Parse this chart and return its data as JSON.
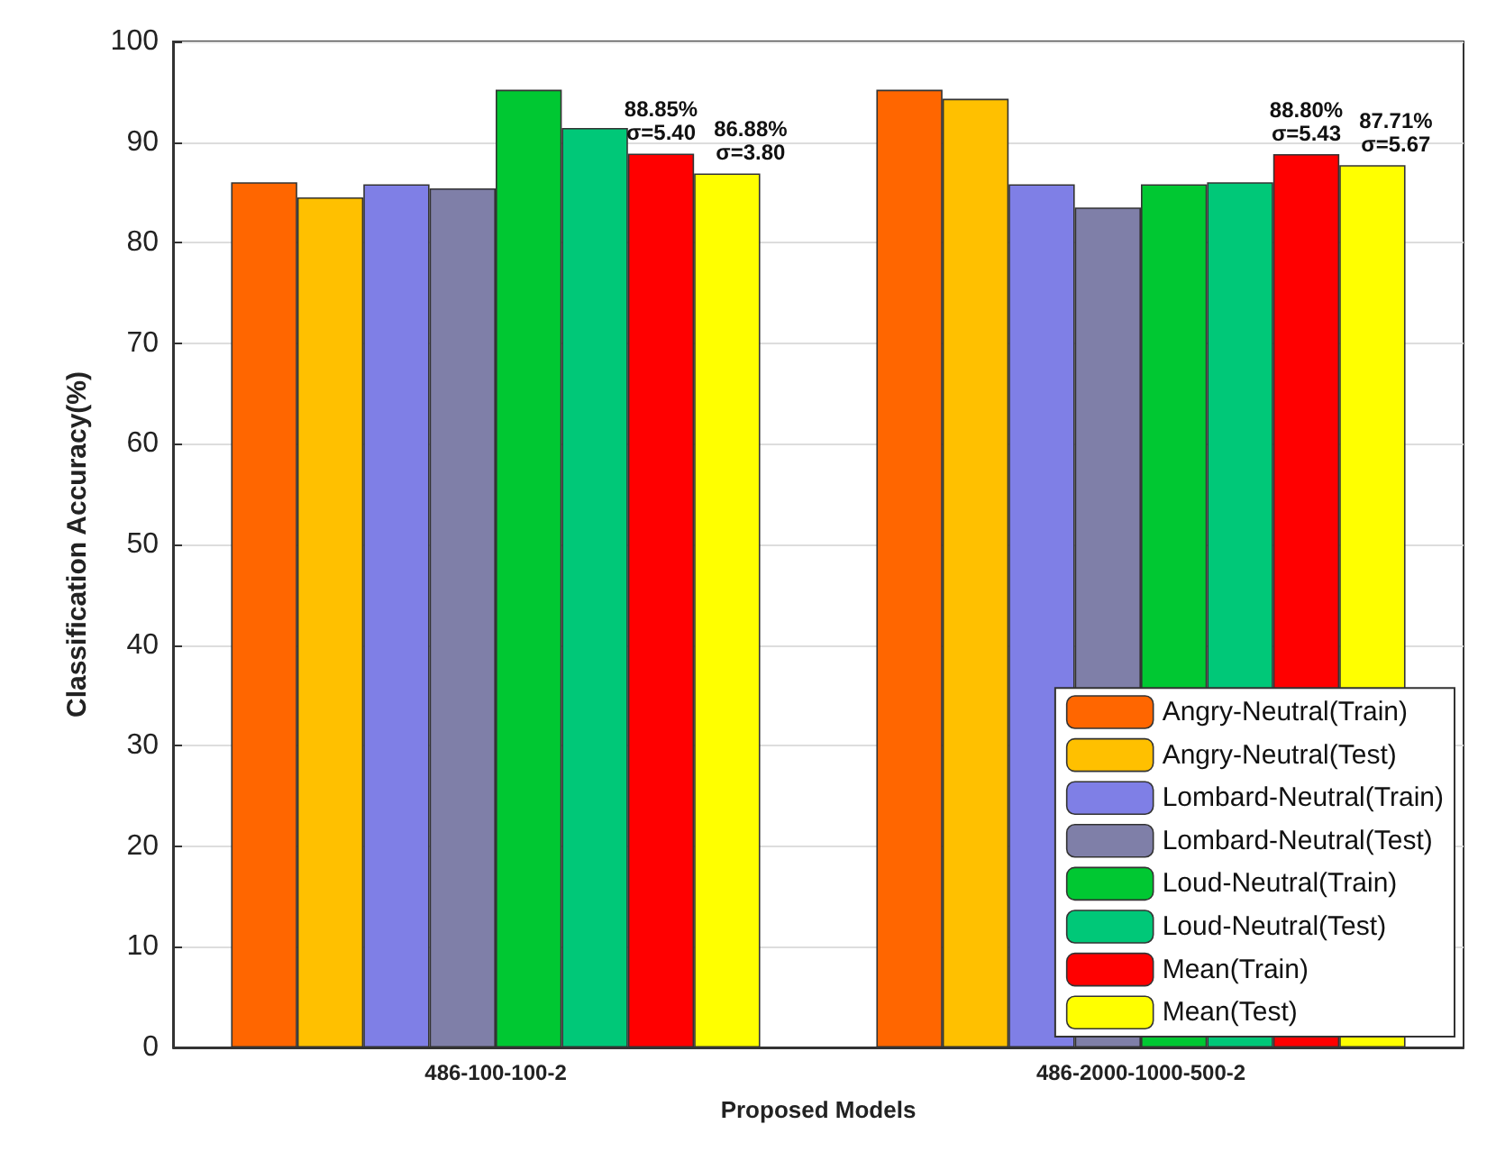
{
  "chart_data": {
    "type": "bar",
    "xlabel": "Proposed Models",
    "ylabel": "Classification Accuracy(%)",
    "categories": [
      "486-100-100-2",
      "486-2000-1000-500-2"
    ],
    "series": [
      {
        "name": "Angry-Neutral(Train)",
        "color": "#ff6600",
        "values": [
          86.0,
          95.2
        ]
      },
      {
        "name": "Angry-Neutral(Test)",
        "color": "#ffc000",
        "values": [
          84.5,
          94.3
        ]
      },
      {
        "name": "Lombard-Neutral(Train)",
        "color": "#7f7fe6",
        "values": [
          85.8,
          85.8
        ]
      },
      {
        "name": "Lombard-Neutral(Test)",
        "color": "#7f7fa8",
        "values": [
          85.4,
          83.5
        ]
      },
      {
        "name": "Loud-Neutral(Train)",
        "color": "#00c832",
        "values": [
          95.2,
          85.8
        ]
      },
      {
        "name": "Loud-Neutral(Test)",
        "color": "#00c878",
        "values": [
          91.4,
          86.0
        ]
      },
      {
        "name": "Mean(Train)",
        "color": "#ff0000",
        "values": [
          88.85,
          88.8
        ],
        "value_labels": [
          "88.85%\nσ=5.40",
          "88.80%\nσ=5.43"
        ]
      },
      {
        "name": "Mean(Test)",
        "color": "#ffff00",
        "values": [
          86.88,
          87.71
        ],
        "value_labels": [
          "86.88%\nσ=3.80",
          "87.71%\nσ=5.67"
        ]
      }
    ],
    "ylim": [
      0,
      100
    ],
    "yticks": [
      0,
      10,
      20,
      30,
      40,
      50,
      60,
      70,
      80,
      90,
      100
    ],
    "grid": "y",
    "legend": "bottom right"
  }
}
